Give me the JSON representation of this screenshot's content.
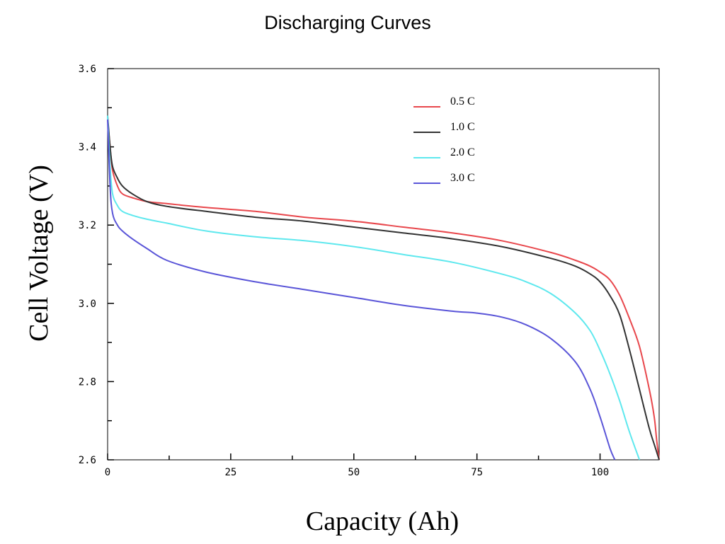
{
  "chart_data": {
    "type": "line",
    "title": "Discharging Curves",
    "xlabel": "Capacity (Ah)",
    "ylabel": "Cell Voltage (V)",
    "xlim": [
      0,
      112
    ],
    "ylim": [
      2.6,
      3.6
    ],
    "x_ticks": [
      0,
      25,
      50,
      75,
      100
    ],
    "y_ticks": [
      2.6,
      2.8,
      3.0,
      3.2,
      3.4,
      3.6
    ],
    "y_tick_labels": [
      "2.6",
      "2.8",
      "3.0",
      "3.2",
      "3.4",
      "3.6"
    ],
    "grid": false,
    "legend_position": "top-right",
    "series": [
      {
        "name": "0.5 C",
        "color": "#e8474c",
        "x": [
          0,
          0.5,
          1,
          2,
          3,
          5,
          8,
          12,
          20,
          30,
          40,
          50,
          60,
          70,
          80,
          90,
          95,
          98,
          100,
          102,
          104,
          106,
          108,
          110,
          111,
          111.5,
          112
        ],
        "y": [
          3.47,
          3.4,
          3.34,
          3.3,
          3.28,
          3.27,
          3.26,
          3.255,
          3.245,
          3.235,
          3.22,
          3.21,
          3.195,
          3.18,
          3.16,
          3.13,
          3.11,
          3.095,
          3.08,
          3.06,
          3.02,
          2.96,
          2.89,
          2.78,
          2.71,
          2.65,
          2.6
        ]
      },
      {
        "name": "1.0 C",
        "color": "#333333",
        "x": [
          0,
          0.5,
          1,
          2,
          3,
          5,
          8,
          12,
          20,
          30,
          40,
          50,
          60,
          70,
          80,
          90,
          95,
          98,
          100,
          102,
          104,
          106,
          108,
          110,
          111,
          112
        ],
        "y": [
          3.48,
          3.4,
          3.35,
          3.32,
          3.3,
          3.28,
          3.26,
          3.248,
          3.235,
          3.22,
          3.21,
          3.195,
          3.18,
          3.165,
          3.145,
          3.115,
          3.095,
          3.075,
          3.055,
          3.02,
          2.97,
          2.88,
          2.78,
          2.68,
          2.64,
          2.6
        ]
      },
      {
        "name": "2.0 C",
        "color": "#5ee8ee",
        "x": [
          0,
          0.5,
          1,
          2,
          3,
          5,
          8,
          12,
          20,
          30,
          40,
          50,
          60,
          70,
          80,
          85,
          90,
          95,
          98,
          100,
          102,
          104,
          106,
          108
        ],
        "y": [
          3.48,
          3.35,
          3.28,
          3.25,
          3.235,
          3.225,
          3.215,
          3.205,
          3.185,
          3.17,
          3.16,
          3.145,
          3.125,
          3.105,
          3.075,
          3.055,
          3.025,
          2.975,
          2.93,
          2.88,
          2.82,
          2.75,
          2.67,
          2.6
        ]
      },
      {
        "name": "3.0 C",
        "color": "#5a55d8",
        "x": [
          0,
          0.5,
          1,
          2,
          3,
          5,
          8,
          12,
          20,
          30,
          40,
          50,
          60,
          70,
          75,
          80,
          85,
          90,
          95,
          98,
          100,
          102,
          103
        ],
        "y": [
          3.47,
          3.3,
          3.23,
          3.2,
          3.185,
          3.165,
          3.14,
          3.11,
          3.08,
          3.055,
          3.035,
          3.015,
          2.995,
          2.98,
          2.975,
          2.965,
          2.945,
          2.91,
          2.85,
          2.78,
          2.71,
          2.63,
          2.6
        ]
      }
    ]
  }
}
